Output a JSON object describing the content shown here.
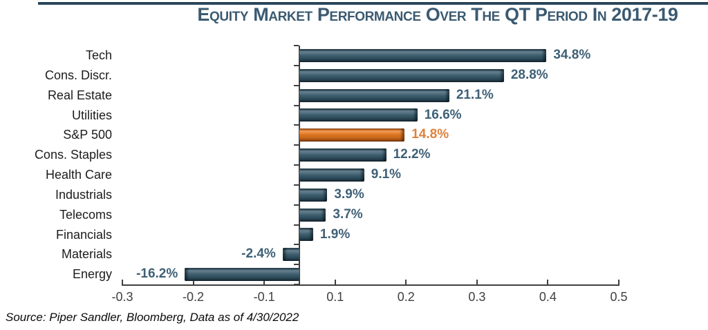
{
  "page": {
    "background": "#ffffff"
  },
  "header": {
    "title": "Equity Market Performance Over The QT Period In 2017-19"
  },
  "source_note": "Source: Piper Sandler, Bloomberg, Data as of 4/30/2022",
  "colors": {
    "title": "#3b5a71",
    "top_rule": "#2c4a60",
    "bar_blue": "#34525f",
    "bar_highlight_orange": "#d2691e",
    "value_label_blue": "#3e6076",
    "value_label_orange": "#e0823c",
    "axis": "#3f3f3f",
    "category_text": "#1c1c1c"
  },
  "chart_data": {
    "type": "bar",
    "orientation": "horizontal",
    "title": "Equity Market Performance Over The QT Period In 2017-19",
    "categories": [
      "Tech",
      "Cons. Discr.",
      "Real Estate",
      "Utilities",
      "S&P 500",
      "Cons. Staples",
      "Health Care",
      "Industrials",
      "Telecoms",
      "Financials",
      "Materials",
      "Energy"
    ],
    "values_pct": [
      34.8,
      28.8,
      21.1,
      16.6,
      14.8,
      12.2,
      9.1,
      3.9,
      3.7,
      1.9,
      -2.4,
      -16.2
    ],
    "value_labels": [
      "34.8%",
      "28.8%",
      "21.1%",
      "16.6%",
      "14.8%",
      "12.2%",
      "9.1%",
      "3.9%",
      "3.7%",
      "1.9%",
      "-2.4%",
      "-16.2%"
    ],
    "highlight_category": "S&P 500",
    "bar_color": "#34525f",
    "highlight_color": "#d2691e",
    "grid": false,
    "legend": false,
    "xlabel": "",
    "ylabel": "",
    "x_axis": {
      "min": -0.25,
      "max": 0.45,
      "tick_values": [
        -0.25,
        -0.15,
        -0.05,
        0.05,
        0.15,
        0.25,
        0.35,
        0.45
      ],
      "tick_labels": [
        "-0.3",
        "-0.2",
        "-0.1",
        "0.1",
        "0.2",
        "0.3",
        "0.4",
        "0.5"
      ]
    }
  }
}
